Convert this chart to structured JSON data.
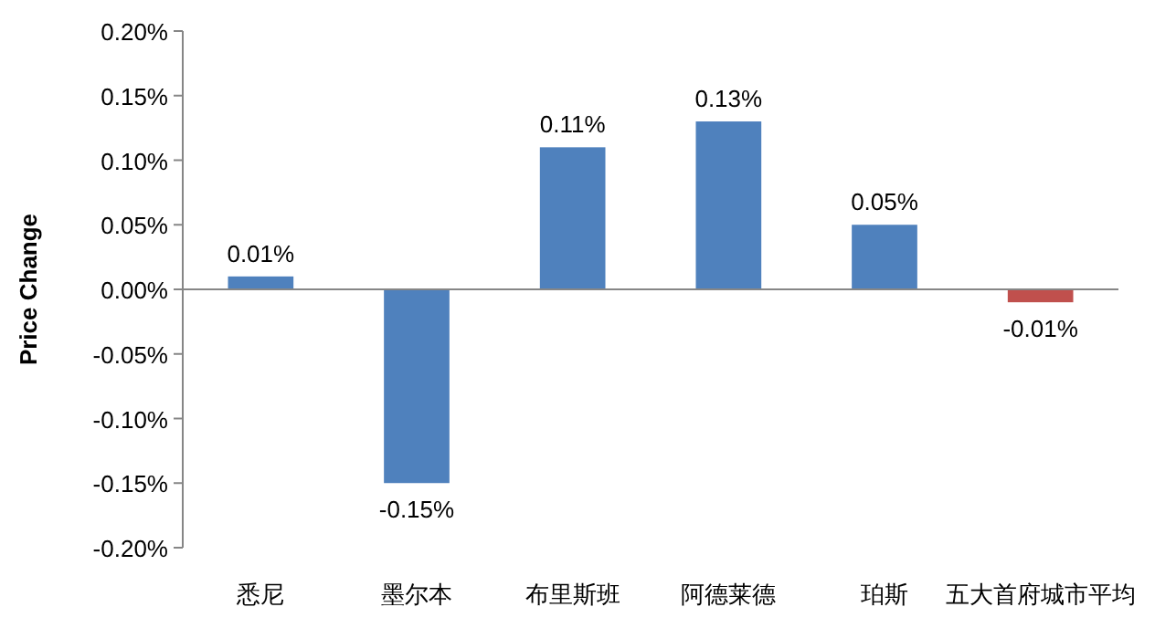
{
  "chart_data": {
    "type": "bar",
    "ylabel": "Price Change",
    "categories": [
      "悉尼",
      "墨尔本",
      "布里斯班",
      "阿德莱德",
      "珀斯",
      "五大首府城市平均"
    ],
    "values": [
      0.01,
      -0.15,
      0.11,
      0.13,
      0.05,
      -0.01
    ],
    "colors": [
      "#4f81bd",
      "#4f81bd",
      "#4f81bd",
      "#4f81bd",
      "#4f81bd",
      "#c0504d"
    ],
    "value_labels": [
      "0.01%",
      "-0.15%",
      "0.11%",
      "0.13%",
      "0.05%",
      "-0.01%"
    ],
    "ylim": [
      -0.2,
      0.2
    ],
    "yticks": [
      {
        "value": -0.2,
        "label": "-0.20%"
      },
      {
        "value": -0.15,
        "label": "-0.15%"
      },
      {
        "value": -0.1,
        "label": "-0.10%"
      },
      {
        "value": -0.05,
        "label": "-0.05%"
      },
      {
        "value": 0,
        "label": "0.00%"
      },
      {
        "value": 0.05,
        "label": "0.05%"
      },
      {
        "value": 0.1,
        "label": "0.10%"
      },
      {
        "value": 0.15,
        "label": "0.15%"
      },
      {
        "value": 0.2,
        "label": "0.20%"
      }
    ]
  }
}
